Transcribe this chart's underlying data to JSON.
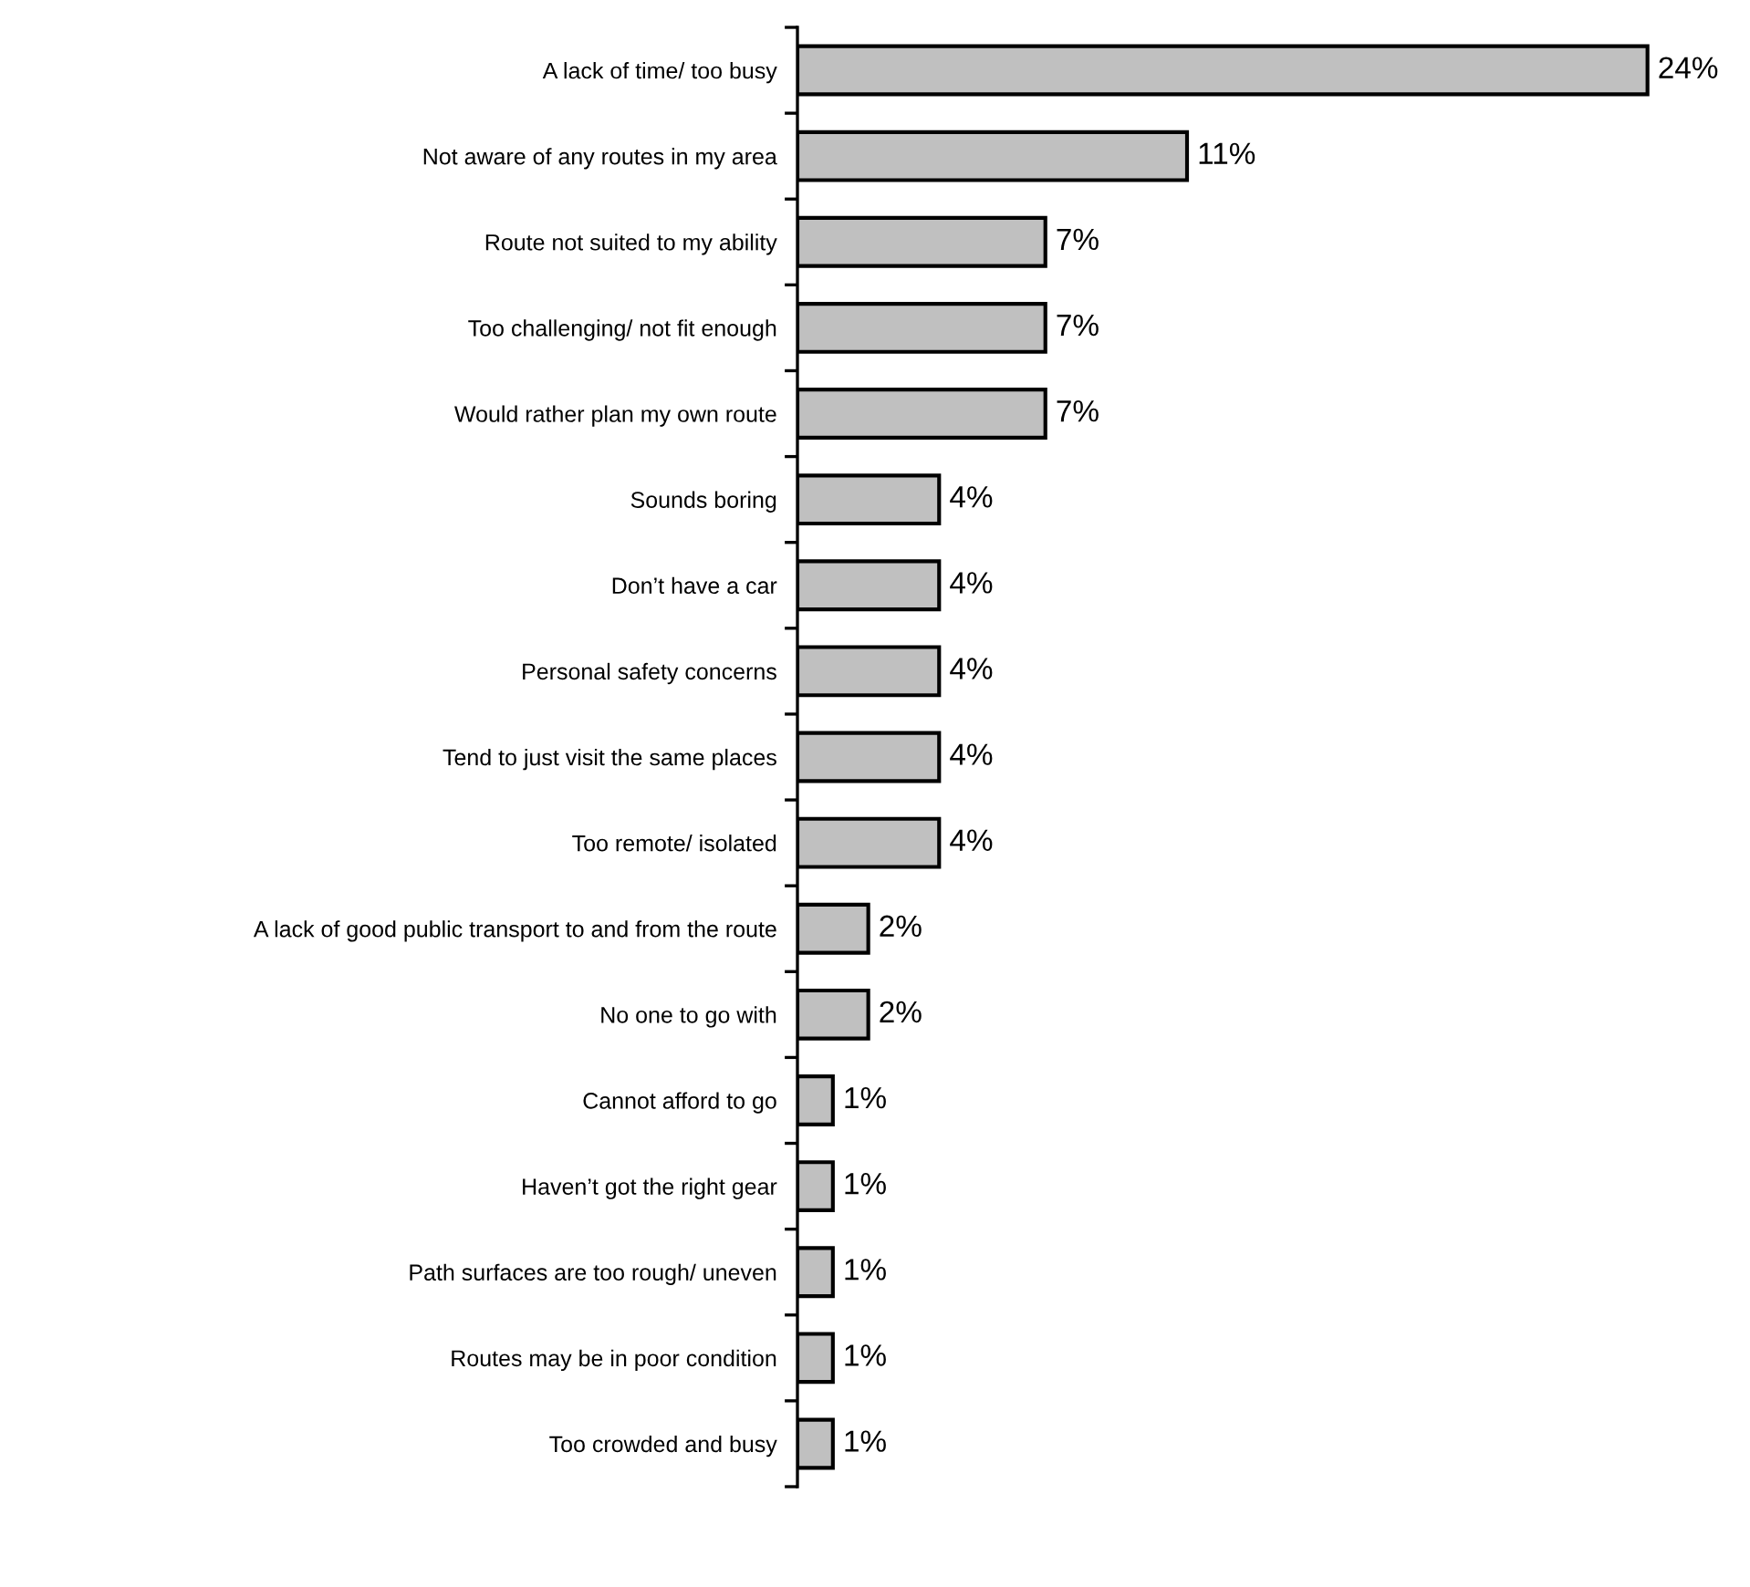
{
  "chart_data": {
    "type": "bar",
    "orientation": "horizontal",
    "categories": [
      "A lack of time/ too busy",
      "Not aware of any routes in my area",
      "Route not suited to my ability",
      "Too challenging/ not fit enough",
      "Would rather plan my own route",
      "Sounds boring",
      "Don’t have a car",
      "Personal safety concerns",
      "Tend to just visit the same places",
      "Too remote/ isolated",
      "A lack of good public transport to and from the route",
      "No one to go with",
      "Cannot afford to go",
      "Haven’t got the right gear",
      "Path surfaces are too rough/ uneven",
      "Routes may be in poor condition",
      "Too crowded and busy"
    ],
    "values": [
      24,
      11,
      7,
      7,
      7,
      4,
      4,
      4,
      4,
      4,
      2,
      2,
      1,
      1,
      1,
      1,
      1
    ],
    "value_labels": [
      "24%",
      "11%",
      "7%",
      "7%",
      "7%",
      "4%",
      "4%",
      "4%",
      "4%",
      "4%",
      "2%",
      "2%",
      "1%",
      "1%",
      "1%",
      "1%",
      "1%"
    ],
    "color": "#c0c0c0",
    "grid": false,
    "legend": false
  }
}
